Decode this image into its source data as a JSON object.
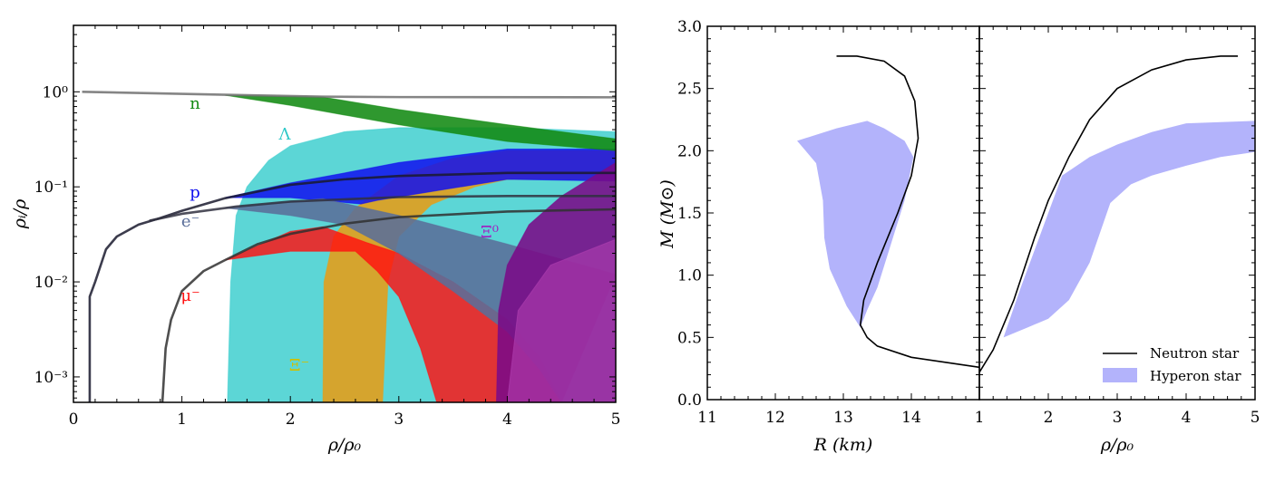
{
  "chart_data": [
    {
      "type": "area",
      "title": "",
      "xlabel": "ρ/ρ₀",
      "ylabel": "ρᵢ/ρ",
      "xlim": [
        0,
        5
      ],
      "ylim": [
        0.00054,
        5
      ],
      "yscale": "log",
      "xticks": [
        "0",
        "1",
        "2",
        "3",
        "4",
        "5"
      ],
      "yticks": [
        {
          "v": 1,
          "label": "10⁰"
        },
        {
          "v": 0.1,
          "label": "10⁻¹"
        },
        {
          "v": 0.01,
          "label": "10⁻²"
        },
        {
          "v": 0.001,
          "label": "10⁻³"
        }
      ],
      "bands": [
        {
          "name": "Λ",
          "color": "#40cfcf",
          "opacity": 0.85,
          "upper": [
            [
              1.42,
              0.00054
            ],
            [
              1.45,
              0.01
            ],
            [
              1.5,
              0.05
            ],
            [
              1.6,
              0.1
            ],
            [
              1.8,
              0.19
            ],
            [
              2,
              0.27
            ],
            [
              2.5,
              0.38
            ],
            [
              3,
              0.42
            ],
            [
              4,
              0.42
            ],
            [
              5,
              0.38
            ]
          ],
          "lower": [
            [
              1.42,
              0.00054
            ],
            [
              5,
              0.00054
            ]
          ]
        },
        {
          "name": "Ξ⁻",
          "color": "#e0a020",
          "opacity": 0.92,
          "upper": [
            [
              2.3,
              0.00054
            ],
            [
              2.31,
              0.01
            ],
            [
              2.4,
              0.03
            ],
            [
              2.6,
              0.06
            ],
            [
              3,
              0.13
            ],
            [
              3.5,
              0.2
            ],
            [
              4,
              0.24
            ],
            [
              5,
              0.24
            ]
          ],
          "lower": [
            [
              2.85,
              0.00054
            ],
            [
              2.9,
              0.01
            ],
            [
              3,
              0.03
            ],
            [
              3.3,
              0.065
            ],
            [
              3.7,
              0.1
            ],
            [
              4,
              0.12
            ],
            [
              5,
              0.12
            ]
          ]
        },
        {
          "name": "μ⁻",
          "color": "#ff1010",
          "opacity": 0.82,
          "upper": [
            [
              1.4,
              0.017
            ],
            [
              2,
              0.034
            ],
            [
              2.3,
              0.038
            ],
            [
              2.7,
              0.026
            ],
            [
              3,
              0.02
            ],
            [
              3.5,
              0.01
            ],
            [
              4,
              0.004
            ],
            [
              4.3,
              0.0016
            ],
            [
              4.5,
              0.00054
            ]
          ],
          "lower": [
            [
              1.4,
              0.017
            ],
            [
              2,
              0.021
            ],
            [
              2.6,
              0.021
            ],
            [
              2.8,
              0.013
            ],
            [
              3,
              0.007
            ],
            [
              3.2,
              0.002
            ],
            [
              3.35,
              0.00054
            ]
          ]
        },
        {
          "name": "p",
          "color": "#1010ee",
          "opacity": 0.85,
          "upper": [
            [
              1.4,
              0.077
            ],
            [
              2,
              0.11
            ],
            [
              2.5,
              0.14
            ],
            [
              3,
              0.18
            ],
            [
              4,
              0.25
            ],
            [
              5,
              0.25
            ]
          ],
          "lower": [
            [
              1.4,
              0.077
            ],
            [
              2,
              0.077
            ],
            [
              2.65,
              0.066
            ],
            [
              2.8,
              0.072
            ],
            [
              4,
              0.12
            ],
            [
              5,
              0.115
            ]
          ]
        },
        {
          "name": "e⁻",
          "color": "#5a6e9a",
          "opacity": 0.88,
          "upper": [
            [
              1.4,
              0.06
            ],
            [
              2,
              0.07
            ],
            [
              2.3,
              0.075
            ],
            [
              3,
              0.05
            ],
            [
              4,
              0.025
            ],
            [
              5,
              0.012
            ]
          ],
          "lower": [
            [
              1.4,
              0.06
            ],
            [
              2,
              0.05
            ],
            [
              2.5,
              0.04
            ],
            [
              3,
              0.02
            ],
            [
              3.5,
              0.008
            ],
            [
              4,
              0.003
            ],
            [
              4.3,
              0.0012
            ],
            [
              4.5,
              0.00054
            ]
          ]
        },
        {
          "name": "Ξ⁰",
          "color": "#7a0a88",
          "opacity": 0.88,
          "upper": [
            [
              3.9,
              0.00054
            ],
            [
              3.92,
              0.005
            ],
            [
              4,
              0.015
            ],
            [
              4.2,
              0.04
            ],
            [
              4.5,
              0.08
            ],
            [
              5,
              0.18
            ]
          ],
          "lower": [
            [
              3.9,
              0.00054
            ],
            [
              5,
              0.00054
            ]
          ]
        },
        {
          "name": "Ξ⁰ inner",
          "color": "#b040b0",
          "opacity": 0.6,
          "upper": [
            [
              4.0,
              0.00054
            ],
            [
              4.1,
              0.005
            ],
            [
              4.4,
              0.015
            ],
            [
              5,
              0.028
            ]
          ],
          "lower": [
            [
              4.0,
              0.00054
            ],
            [
              5,
              0.00054
            ]
          ]
        },
        {
          "name": "n",
          "color": "#128a12",
          "opacity": 0.88,
          "upper": [
            [
              1.4,
              0.92
            ],
            [
              2.3,
              0.88
            ],
            [
              3,
              0.65
            ],
            [
              4,
              0.45
            ],
            [
              5,
              0.32
            ]
          ],
          "lower": [
            [
              1.4,
              0.92
            ],
            [
              2,
              0.72
            ],
            [
              3,
              0.45
            ],
            [
              4,
              0.3
            ],
            [
              5,
              0.24
            ]
          ]
        }
      ],
      "lines": [
        {
          "name": "n (neutron star)",
          "color": "#707070",
          "points": [
            [
              0.08,
              1.0
            ],
            [
              1.4,
              0.93
            ],
            [
              2.3,
              0.89
            ],
            [
              3,
              0.88
            ],
            [
              5,
              0.875
            ]
          ]
        },
        {
          "name": "p (neutron star)",
          "color": "#1a1a2e",
          "points": [
            [
              0.15,
              0.00054
            ],
            [
              0.15,
              0.007
            ],
            [
              0.2,
              0.01
            ],
            [
              0.3,
              0.022
            ],
            [
              0.4,
              0.03
            ],
            [
              0.6,
              0.04
            ],
            [
              0.8,
              0.047
            ],
            [
              1.0,
              0.056
            ],
            [
              1.4,
              0.076
            ],
            [
              2,
              0.105
            ],
            [
              2.5,
              0.12
            ],
            [
              3,
              0.13
            ],
            [
              4,
              0.14
            ],
            [
              5,
              0.14
            ]
          ]
        },
        {
          "name": "e⁻ (neutron star)",
          "color": "#303040",
          "points": [
            [
              0.7,
              0.044
            ],
            [
              1,
              0.052
            ],
            [
              1.5,
              0.062
            ],
            [
              2,
              0.07
            ],
            [
              3,
              0.078
            ],
            [
              4,
              0.08
            ],
            [
              5,
              0.08
            ]
          ]
        },
        {
          "name": "μ⁻ (neutron star)",
          "color": "#303030",
          "points": [
            [
              0.82,
              0.00054
            ],
            [
              0.85,
              0.002
            ],
            [
              0.9,
              0.004
            ],
            [
              1,
              0.008
            ],
            [
              1.2,
              0.013
            ],
            [
              1.4,
              0.017
            ],
            [
              1.7,
              0.025
            ],
            [
              2,
              0.032
            ],
            [
              2.5,
              0.041
            ],
            [
              3,
              0.048
            ],
            [
              4,
              0.055
            ],
            [
              5,
              0.058
            ]
          ]
        }
      ],
      "annotations": [
        {
          "text": "n",
          "color": "#128a12"
        },
        {
          "text": "Λ",
          "color": "#30c8c8"
        },
        {
          "text": "p",
          "color": "#1010ee"
        },
        {
          "text": "e⁻",
          "color": "#5a6e9a"
        },
        {
          "text": "μ⁻",
          "color": "#ff1010"
        },
        {
          "text": "Ξ⁻",
          "color": "#d0c000"
        },
        {
          "text": "Ξ⁰",
          "color": "#a020c0"
        }
      ]
    },
    {
      "type": "line",
      "xlabel": "R (km)",
      "ylabel": "M (M⊙)",
      "xlim": [
        11,
        15
      ],
      "ylim": [
        0,
        3
      ],
      "xticks": [
        "11",
        "12",
        "13",
        "14"
      ],
      "yticks": [
        "0.0",
        "0.5",
        "1.0",
        "1.5",
        "2.0",
        "2.5",
        "3.0"
      ],
      "series": [
        {
          "name": "Neutron star",
          "color": "#000000",
          "points": [
            [
              15,
              0.26
            ],
            [
              14.5,
              0.3
            ],
            [
              14,
              0.34
            ],
            [
              13.5,
              0.43
            ],
            [
              13.35,
              0.5
            ],
            [
              13.25,
              0.6
            ],
            [
              13.3,
              0.8
            ],
            [
              13.5,
              1.1
            ],
            [
              13.8,
              1.5
            ],
            [
              14,
              1.8
            ],
            [
              14.1,
              2.1
            ],
            [
              14.05,
              2.4
            ],
            [
              13.9,
              2.6
            ],
            [
              13.6,
              2.72
            ],
            [
              13.2,
              2.76
            ],
            [
              12.9,
              2.76
            ]
          ]
        },
        {
          "name": "Hyperon star",
          "color": "#b3b3fb",
          "polygon": [
            [
              12.32,
              2.08
            ],
            [
              12.9,
              2.18
            ],
            [
              13.35,
              2.24
            ],
            [
              13.6,
              2.18
            ],
            [
              13.9,
              2.08
            ],
            [
              14.03,
              1.95
            ],
            [
              13.9,
              1.6
            ],
            [
              13.7,
              1.25
            ],
            [
              13.5,
              0.9
            ],
            [
              13.35,
              0.72
            ],
            [
              13.25,
              0.58
            ],
            [
              13.05,
              0.75
            ],
            [
              12.8,
              1.05
            ],
            [
              12.72,
              1.3
            ],
            [
              12.7,
              1.6
            ],
            [
              12.6,
              1.9
            ]
          ]
        }
      ]
    },
    {
      "type": "line",
      "xlabel": "ρ/ρ₀",
      "xlim": [
        1,
        5
      ],
      "ylim": [
        0,
        3
      ],
      "xticks": [
        "1",
        "2",
        "3",
        "4",
        "5"
      ],
      "legend": {
        "placement": "bottom-right",
        "entries": [
          "Neutron star",
          "Hyperon star"
        ]
      },
      "series": [
        {
          "name": "Neutron star",
          "color": "#000000",
          "points": [
            [
              1,
              0.22
            ],
            [
              1.2,
              0.4
            ],
            [
              1.5,
              0.8
            ],
            [
              1.8,
              1.3
            ],
            [
              2,
              1.6
            ],
            [
              2.3,
              1.95
            ],
            [
              2.6,
              2.25
            ],
            [
              3,
              2.5
            ],
            [
              3.5,
              2.65
            ],
            [
              4,
              2.73
            ],
            [
              4.5,
              2.76
            ],
            [
              4.75,
              2.76
            ]
          ]
        },
        {
          "name": "Hyperon star",
          "color": "#b3b3fb",
          "polygon": [
            [
              1.35,
              0.5
            ],
            [
              1.6,
              0.9
            ],
            [
              1.9,
              1.35
            ],
            [
              2.2,
              1.8
            ],
            [
              2.6,
              1.95
            ],
            [
              3,
              2.05
            ],
            [
              3.5,
              2.15
            ],
            [
              4,
              2.22
            ],
            [
              5,
              2.24
            ],
            [
              5,
              1.99
            ],
            [
              4.5,
              1.95
            ],
            [
              4,
              1.88
            ],
            [
              3.5,
              1.8
            ],
            [
              3.2,
              1.73
            ],
            [
              2.9,
              1.58
            ],
            [
              2.6,
              1.1
            ],
            [
              2.3,
              0.8
            ],
            [
              2,
              0.65
            ],
            [
              1.7,
              0.58
            ],
            [
              1.35,
              0.5
            ]
          ]
        }
      ]
    }
  ]
}
